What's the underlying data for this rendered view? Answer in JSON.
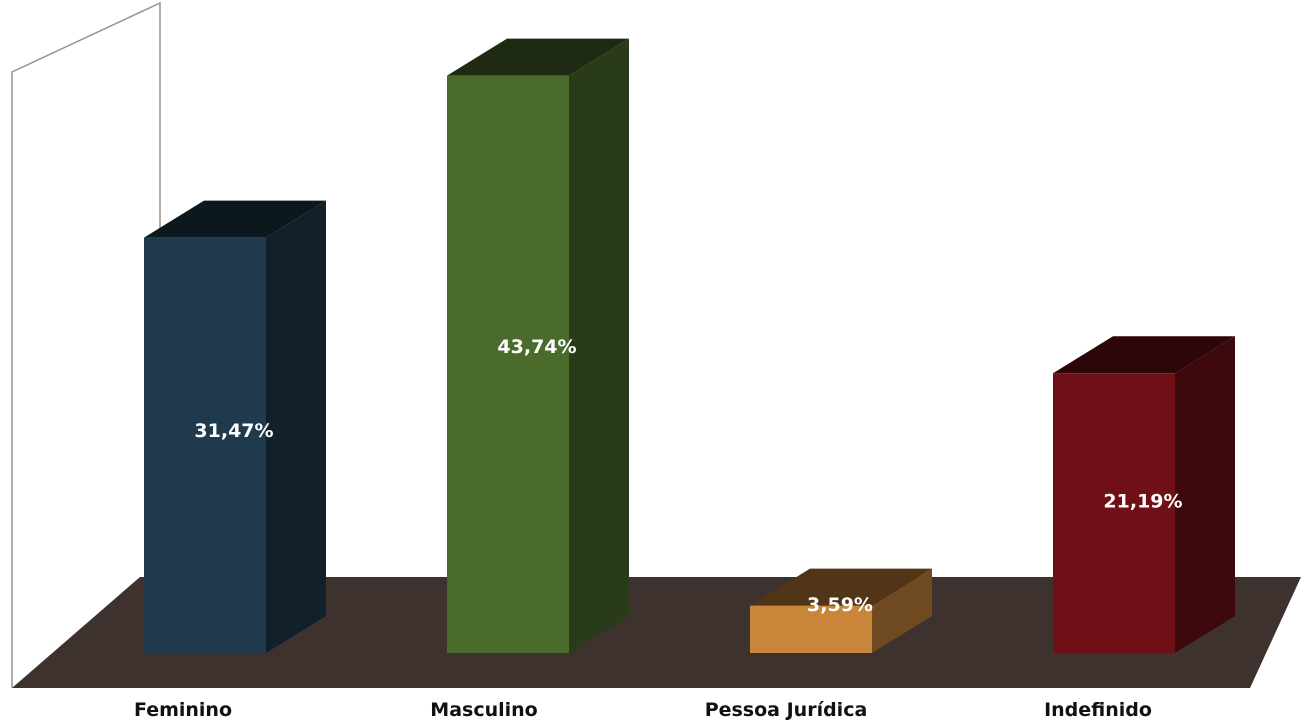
{
  "chart_data": {
    "type": "bar",
    "categories": [
      "Feminino",
      "Masculino",
      "Pessoa Jurídica",
      "Indefinido"
    ],
    "values": [
      31.47,
      43.74,
      3.59,
      21.19
    ],
    "value_labels": [
      "31,47%",
      "43,74%",
      "3,59%",
      "21,19%"
    ],
    "colors": [
      "#1e3a4c",
      "#4a6b2c",
      "#c9853a",
      "#6e1015"
    ],
    "floor_color": "#3d322e",
    "three_d": true,
    "title": "",
    "xlabel": "",
    "ylabel": "",
    "ylim": [
      0,
      50
    ],
    "grid": false,
    "legend": "none"
  }
}
